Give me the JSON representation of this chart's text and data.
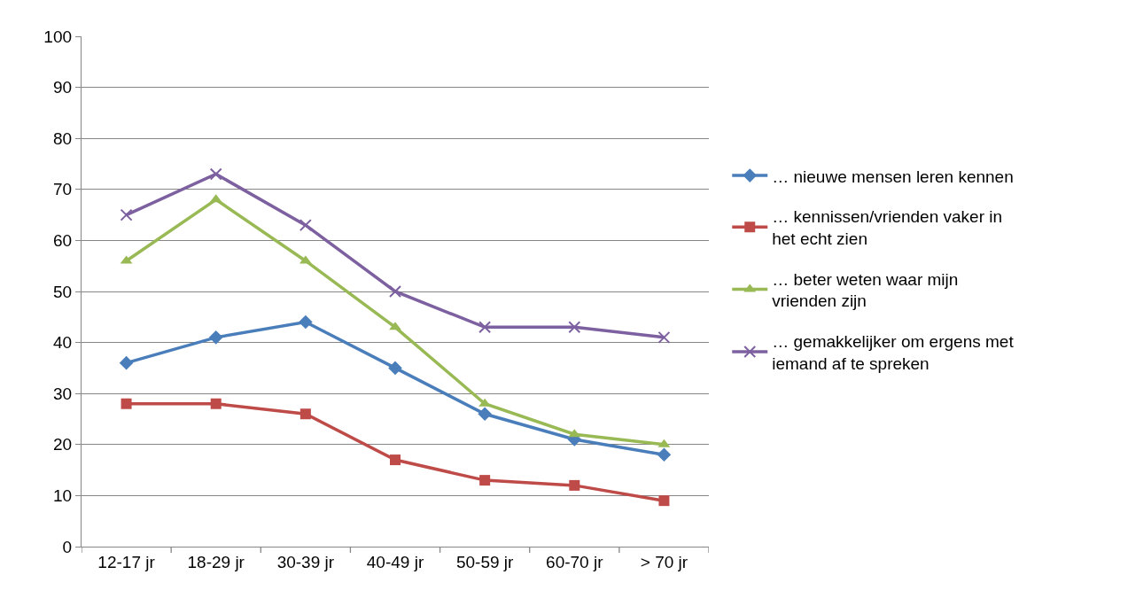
{
  "chart_data": {
    "type": "line",
    "categories": [
      "12-17 jr",
      "18-29 jr",
      "30-39 jr",
      "40-49 jr",
      "50-59 jr",
      "60-70 jr",
      "> 70 jr"
    ],
    "series": [
      {
        "name": "… nieuwe mensen leren kennen",
        "color": "#4a7ebb",
        "marker": "diamond",
        "values": [
          36,
          41,
          44,
          35,
          26,
          21,
          18
        ]
      },
      {
        "name": "… kennissen/vrienden vaker in het echt zien",
        "color": "#be4b48",
        "marker": "square",
        "values": [
          28,
          28,
          26,
          17,
          13,
          12,
          9
        ]
      },
      {
        "name": "… beter weten waar mijn vrienden zijn",
        "color": "#98b954",
        "marker": "triangle",
        "values": [
          56,
          68,
          56,
          43,
          28,
          22,
          20
        ]
      },
      {
        "name": "… gemakkelijker om ergens met iemand af te spreken",
        "color": "#7d60a0",
        "marker": "cross",
        "values": [
          65,
          73,
          63,
          50,
          43,
          43,
          41
        ]
      }
    ],
    "ylim": [
      0,
      100
    ],
    "yticks": [
      0,
      10,
      20,
      30,
      40,
      50,
      60,
      70,
      80,
      90,
      100
    ],
    "grid": "y",
    "legend": "right",
    "line_style": "solid"
  }
}
